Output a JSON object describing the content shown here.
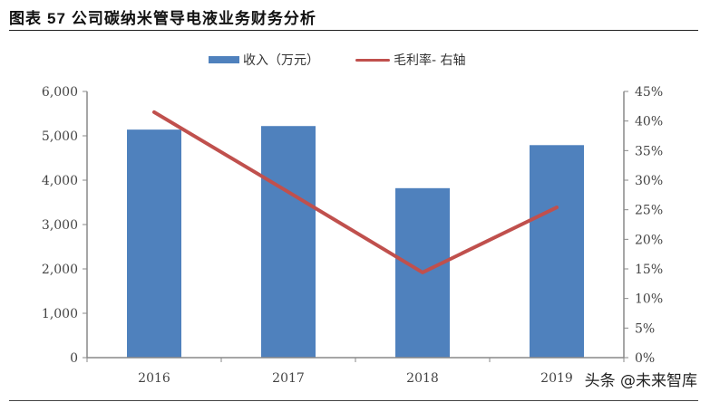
{
  "header": {
    "figure_label": "图表",
    "figure_number": "57",
    "title": "公司碳纳米管导电液业务财务分析"
  },
  "legend": {
    "bar_label": "收入（万元）",
    "line_label": "毛利率- 右轴"
  },
  "axes": {
    "left_ticks": [
      "0",
      "1,000",
      "2,000",
      "3,000",
      "4,000",
      "5,000",
      "6,000"
    ],
    "right_ticks": [
      "0%",
      "5%",
      "10%",
      "15%",
      "20%",
      "25%",
      "30%",
      "35%",
      "40%",
      "45%"
    ],
    "x_ticks": [
      "2016",
      "2017",
      "2018",
      "2019"
    ]
  },
  "watermark": "头条 @未来智库",
  "colors": {
    "bar": "#4F81BD",
    "line": "#C0504D",
    "axis": "#888888"
  },
  "chart_data": {
    "type": "bar",
    "title": "公司碳纳米管导电液业务财务分析",
    "categories": [
      "2016",
      "2017",
      "2018",
      "2019"
    ],
    "series": [
      {
        "name": "收入（万元）",
        "type": "bar",
        "axis": "left",
        "values": [
          5140,
          5220,
          3820,
          4790
        ]
      },
      {
        "name": "毛利率- 右轴",
        "type": "line",
        "axis": "right",
        "values": [
          41.5,
          28.0,
          14.4,
          25.4
        ],
        "unit": "%"
      }
    ],
    "xlabel": "",
    "ylabel": "",
    "ylim": [
      0,
      6000
    ],
    "y2lim": [
      0,
      45
    ],
    "grid": false,
    "legend_position": "top"
  }
}
